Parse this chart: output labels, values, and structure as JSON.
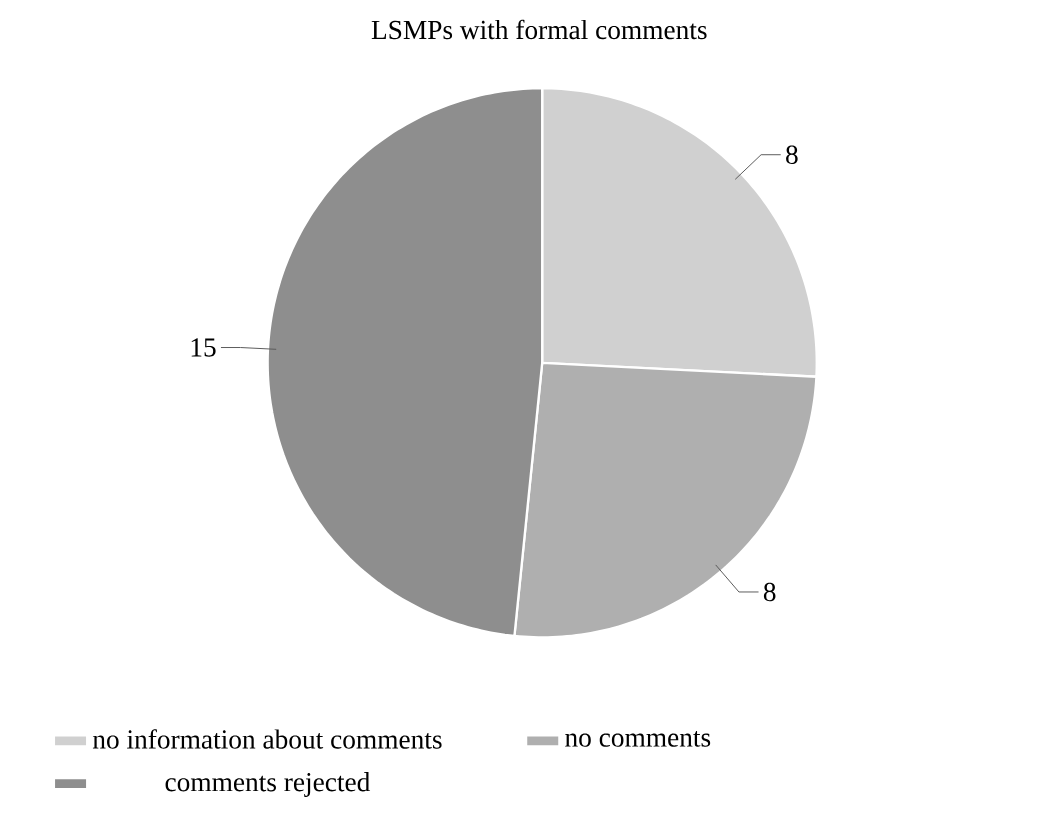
{
  "chart_data": {
    "type": "pie",
    "title": "LSMPs with formal comments",
    "categories": [
      "no information about comments",
      "no comments",
      "comments rejected"
    ],
    "values": [
      8,
      8,
      15
    ],
    "colors": [
      "#d0d0d0",
      "#afafaf",
      "#8e8e8e"
    ],
    "data_labels": true,
    "legend": "bottom"
  }
}
